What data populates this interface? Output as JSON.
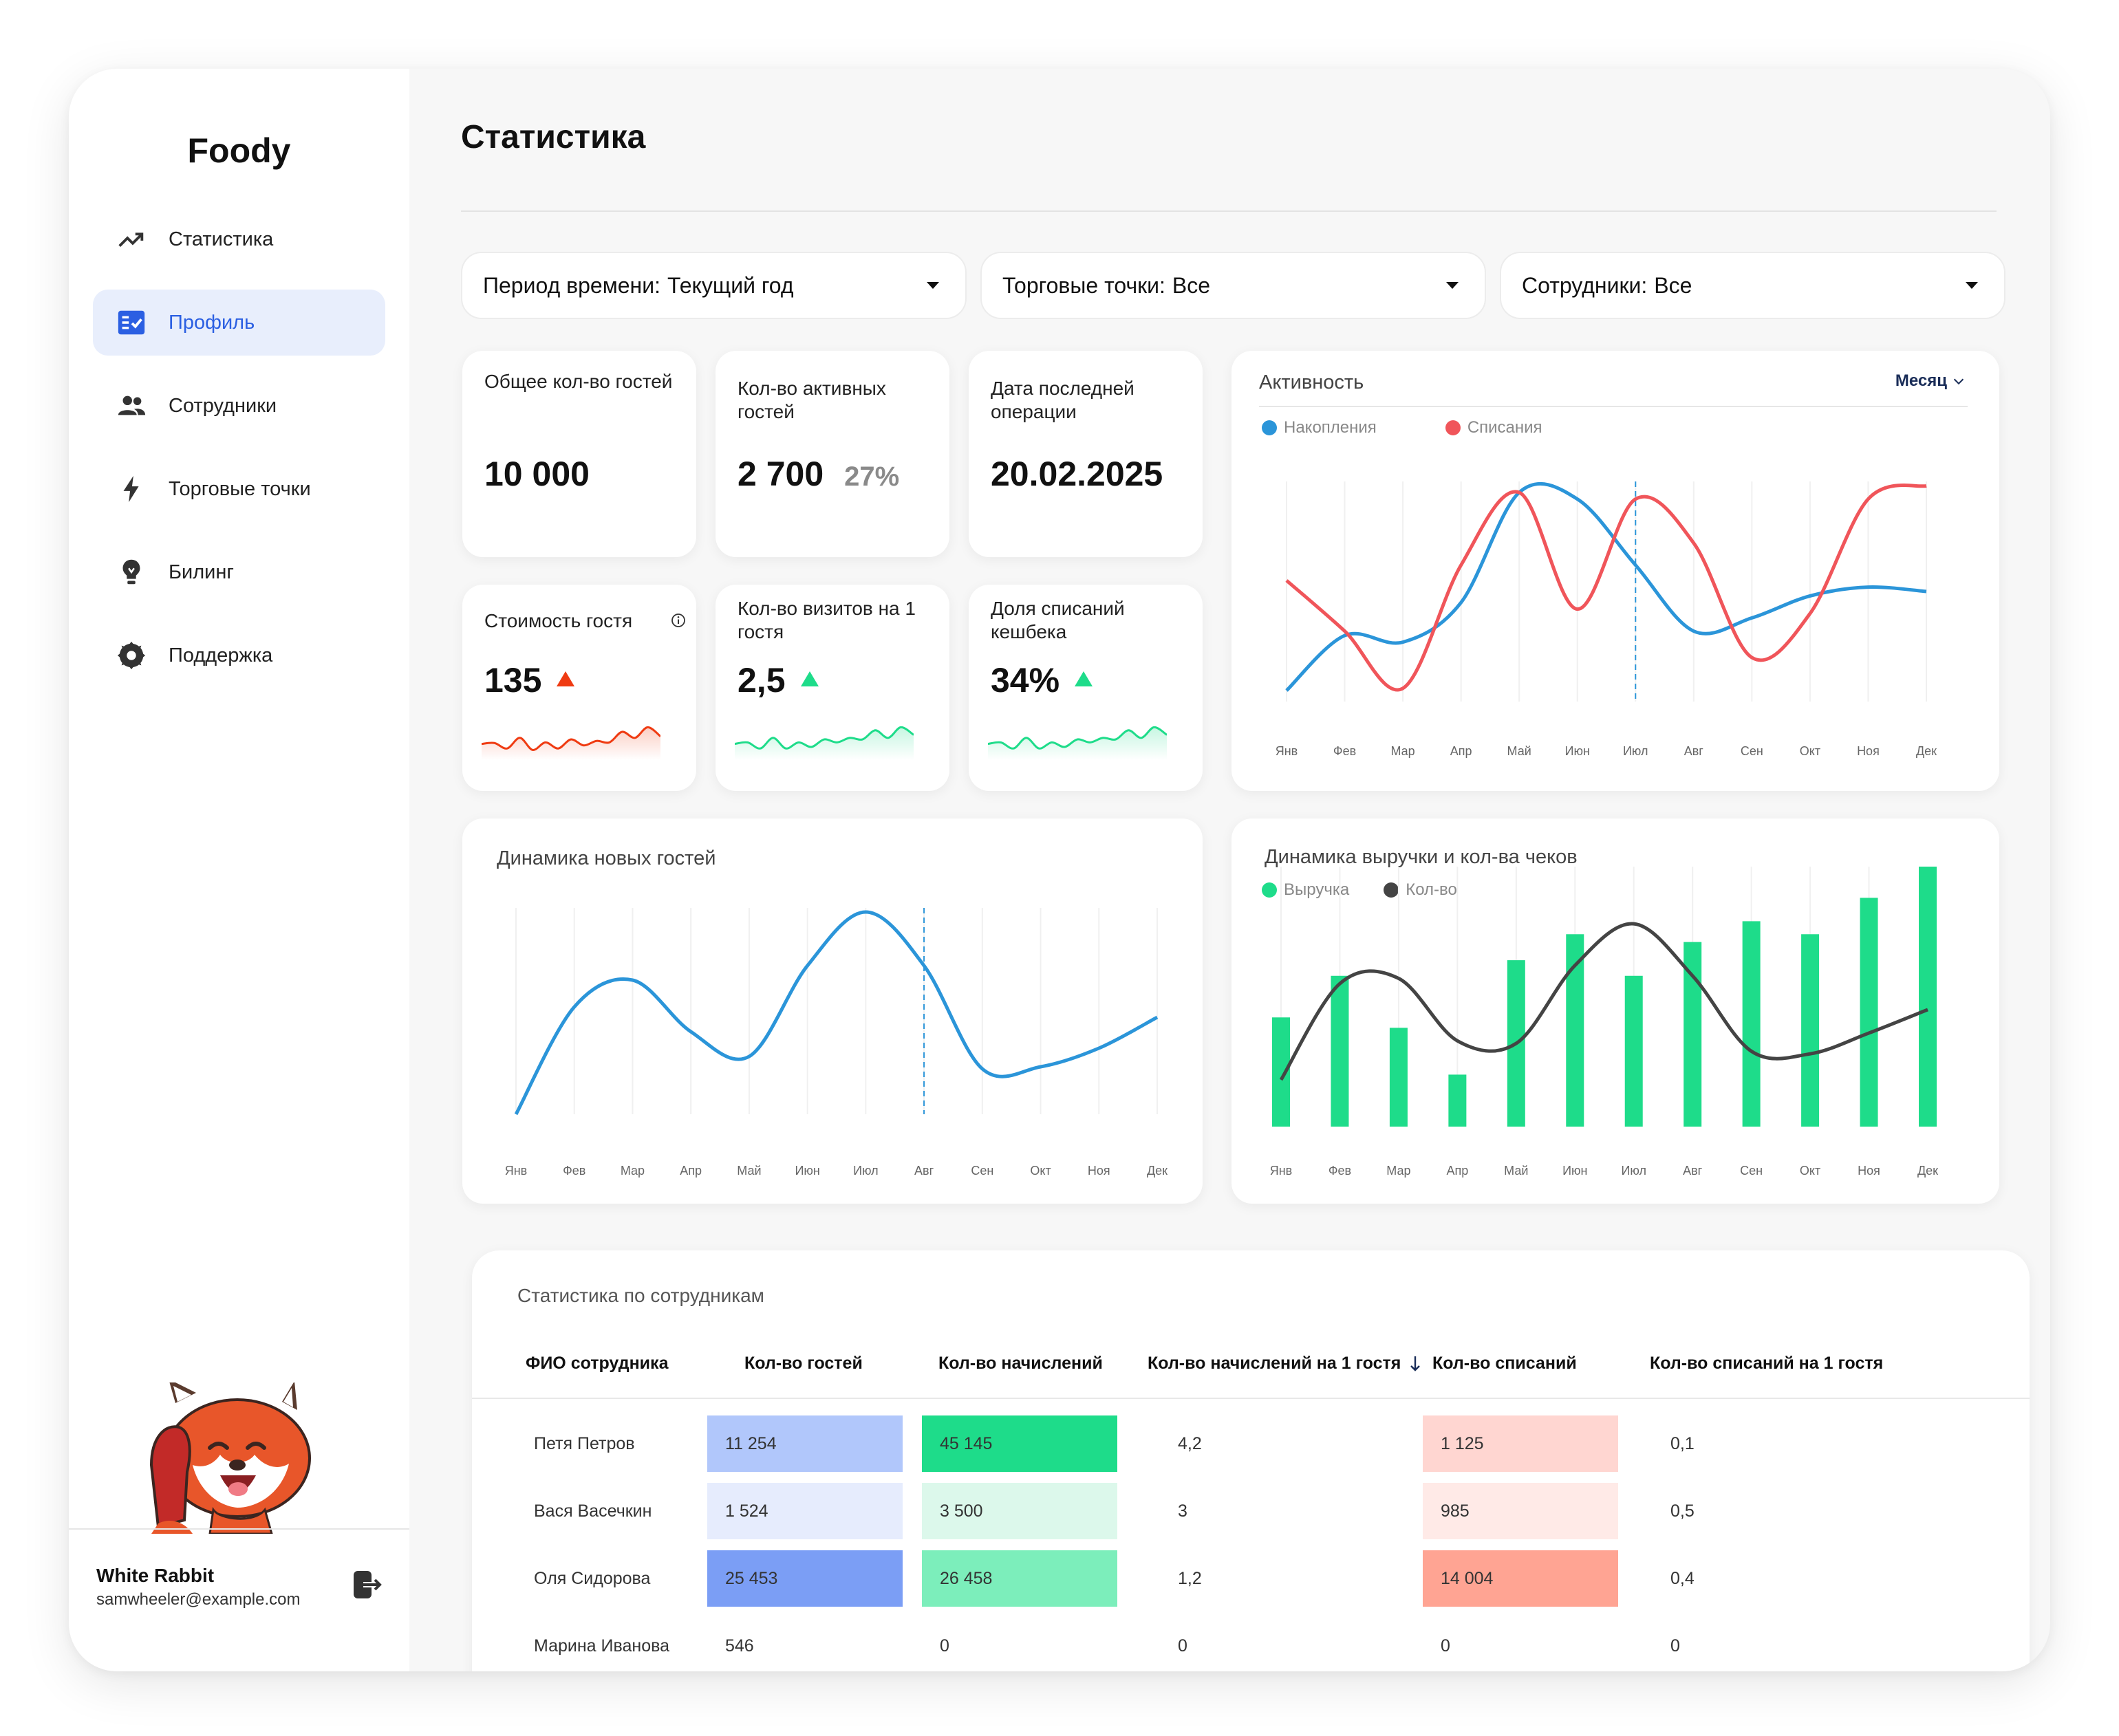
{
  "app": {
    "brand": "Foody"
  },
  "sidebar": {
    "items": [
      {
        "label": "Статистика",
        "icon": "trending-up-icon",
        "active": false
      },
      {
        "label": "Профиль",
        "icon": "checklist-icon",
        "active": true
      },
      {
        "label": "Сотрудники",
        "icon": "people-icon",
        "active": false
      },
      {
        "label": "Торговые точки",
        "icon": "lightning-icon",
        "active": false
      },
      {
        "label": "Билинг",
        "icon": "lightbulb-icon",
        "active": false
      },
      {
        "label": "Поддержка",
        "icon": "gear-icon",
        "active": false
      }
    ],
    "user": {
      "name": "White Rabbit",
      "email": "samwheeler@example.com"
    }
  },
  "page": {
    "title": "Статистика"
  },
  "filters": [
    {
      "label": "Период времени:",
      "value": "Текущий год"
    },
    {
      "label": "Торговые точки:",
      "value": "Все"
    },
    {
      "label": "Сотрудники:",
      "value": "Все"
    }
  ],
  "stats": {
    "total_guests": {
      "label": "Общее кол-во гостей",
      "value": "10 000"
    },
    "active_guests": {
      "label": "Кол-во активных гостей",
      "value": "2 700",
      "sub": "27%"
    },
    "last_operation": {
      "label": "Дата последней операции",
      "value": "20.02.2025"
    },
    "guest_cost": {
      "label": "Стоимость гостя",
      "value": "135",
      "trend": "up",
      "trend_color": "#ef3b12"
    },
    "visits_per_guest": {
      "label": "Кол-во визитов на 1 гостя",
      "value": "2,5",
      "trend": "up",
      "trend_color": "#1edc8a"
    },
    "cashback_share": {
      "label": "Доля списаний кешбека",
      "value": "34%",
      "trend": "up",
      "trend_color": "#1edc8a"
    }
  },
  "charts": {
    "activity": {
      "title": "Активность",
      "period_select": "Месяц"
    },
    "new_guests": {
      "title": "Динамика новых гостей"
    },
    "revenue": {
      "title": "Динамика выручки и кол-ва чеков"
    }
  },
  "chart_data": [
    {
      "type": "line",
      "title": "Активность",
      "categories": [
        "Янв",
        "Фев",
        "Мар",
        "Апр",
        "Май",
        "Июн",
        "Июл",
        "Авг",
        "Сен",
        "Окт",
        "Ноя",
        "Дек"
      ],
      "series": [
        {
          "name": "Накопления",
          "color": "#2b95d9",
          "values": [
            0.05,
            0.3,
            0.27,
            0.45,
            0.95,
            0.92,
            0.62,
            0.32,
            0.38,
            0.48,
            0.52,
            0.5
          ]
        },
        {
          "name": "Списания",
          "color": "#f0555a",
          "values": [
            0.55,
            0.32,
            0.06,
            0.62,
            0.95,
            0.42,
            0.92,
            0.72,
            0.2,
            0.4,
            0.92,
            0.98
          ]
        }
      ],
      "legend": "top-left",
      "highlight_category": "Июл"
    },
    {
      "type": "line",
      "title": "Динамика новых гостей",
      "categories": [
        "Янв",
        "Фев",
        "Мар",
        "Апр",
        "Май",
        "Июн",
        "Июл",
        "Авг",
        "Сен",
        "Окт",
        "Ноя",
        "Дек"
      ],
      "series": [
        {
          "color": "#2b95d9",
          "values": [
            0.0,
            0.52,
            0.65,
            0.4,
            0.28,
            0.72,
            0.98,
            0.72,
            0.22,
            0.23,
            0.32,
            0.47
          ]
        }
      ],
      "highlight_category": "Авг"
    },
    {
      "type": "bar",
      "title": "Динамика выручки и кол-ва чеков",
      "categories": [
        "Янв",
        "Фев",
        "Мар",
        "Апр",
        "Май",
        "Июн",
        "Июл",
        "Авг",
        "Сен",
        "Окт",
        "Ноя",
        "Дек"
      ],
      "series": [
        {
          "name": "Выручка",
          "type": "bar",
          "color": "#1edc8a",
          "values": [
            0.42,
            0.58,
            0.38,
            0.2,
            0.64,
            0.74,
            0.58,
            0.71,
            0.79,
            0.74,
            0.88,
            1.0
          ]
        },
        {
          "name": "Кол-во",
          "type": "line",
          "color": "#444444",
          "values": [
            0.18,
            0.55,
            0.57,
            0.33,
            0.32,
            0.62,
            0.78,
            0.58,
            0.29,
            0.28,
            0.36,
            0.45
          ]
        }
      ],
      "legend": "top-left"
    }
  ],
  "sparklines": {
    "guest_cost": {
      "color": "#ef3b12",
      "values": [
        0.35,
        0.38,
        0.2,
        0.55,
        0.15,
        0.4,
        0.2,
        0.5,
        0.3,
        0.45,
        0.4,
        0.75,
        0.55,
        0.9,
        0.6
      ]
    },
    "visits_per_guest": {
      "color": "#1edc8a",
      "values": [
        0.35,
        0.4,
        0.2,
        0.55,
        0.2,
        0.4,
        0.25,
        0.5,
        0.4,
        0.55,
        0.5,
        0.8,
        0.55,
        0.9,
        0.65
      ]
    },
    "cashback_share": {
      "color": "#1edc8a",
      "values": [
        0.35,
        0.4,
        0.2,
        0.55,
        0.2,
        0.4,
        0.25,
        0.5,
        0.4,
        0.55,
        0.5,
        0.8,
        0.55,
        0.9,
        0.65
      ]
    }
  },
  "employee_table": {
    "title": "Статистика по сотрудникам",
    "columns": [
      "ФИО сотрудника",
      "Кол-во гостей",
      "Кол-во начислений",
      "Кол-во начислений на 1 гостя",
      "Кол-во списаний",
      "Кол-во списаний  на 1 гостя"
    ],
    "sort_column": "Кол-во начислений на 1 гостя",
    "rows": [
      {
        "name": "Петя Петров",
        "guests": "11 254",
        "accruals": "45 145",
        "accruals_per_guest": "4,2",
        "writeoffs": "1 125",
        "writeoffs_per_guest": "0,1",
        "guests_bg": "#b1c7fb",
        "accruals_bg": "#1edc8a",
        "writeoffs_bg": "#ffd6d1"
      },
      {
        "name": "Вася Васечкин",
        "guests": "1 524",
        "accruals": "3 500",
        "accruals_per_guest": "3",
        "writeoffs": "985",
        "writeoffs_per_guest": "0,5",
        "guests_bg": "#e6ecfd",
        "accruals_bg": "#dcf8eb",
        "writeoffs_bg": "#ffeae7"
      },
      {
        "name": "Оля Сидорова",
        "guests": "25 453",
        "accruals": "26 458",
        "accruals_per_guest": "1,2",
        "writeoffs": "14 004",
        "writeoffs_per_guest": "0,4",
        "guests_bg": "#7b9ef5",
        "accruals_bg": "#7ceebb",
        "writeoffs_bg": "#ffa493"
      },
      {
        "name": "Марина Иванова",
        "guests": "546",
        "accruals": "0",
        "accruals_per_guest": "0",
        "writeoffs": "0",
        "writeoffs_per_guest": "0",
        "guests_bg": "",
        "accruals_bg": "",
        "writeoffs_bg": ""
      }
    ]
  }
}
